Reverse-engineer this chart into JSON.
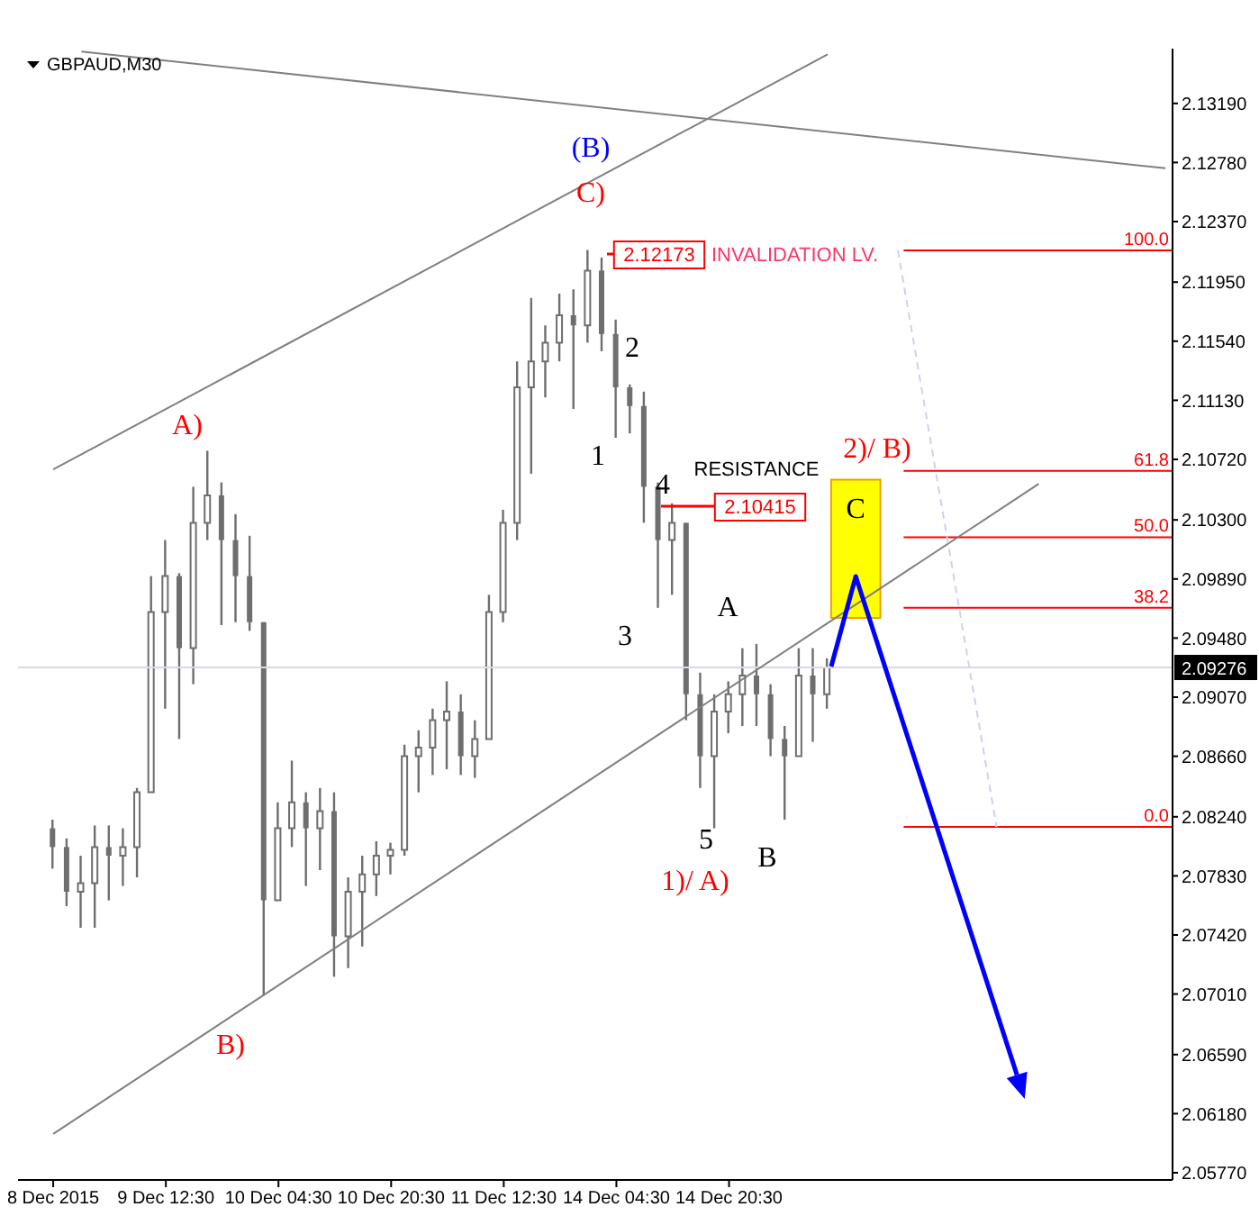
{
  "chart_data": {
    "type": "candlestick",
    "title": "GBPAUD,M30",
    "color": "#6e6e6e",
    "categories": [
      "8 Dec 2015",
      null,
      null,
      null,
      null,
      null,
      null,
      null,
      "9 Dec 12:30",
      null,
      null,
      null,
      null,
      null,
      null,
      null,
      "10 Dec 04:30",
      null,
      null,
      null,
      null,
      null,
      null,
      null,
      "10 Dec 20:30",
      null,
      null,
      null,
      null,
      null,
      null,
      null,
      "11 Dec 12:30",
      null,
      null,
      null,
      null,
      null,
      null,
      null,
      "14 Dec 04:30",
      null,
      null,
      null,
      null,
      null,
      null,
      null,
      "14 Dec 20:30",
      null,
      null,
      null,
      null,
      null,
      null,
      null,
      null,
      null,
      null,
      null,
      null,
      null,
      null,
      null,
      null,
      null,
      null,
      null,
      null,
      null,
      null,
      null,
      null,
      null,
      null,
      null,
      null,
      null,
      null,
      null
    ],
    "ohlc": [
      [
        2.0816,
        2.0822,
        2.0788,
        2.0803
      ],
      [
        2.0803,
        2.0809,
        2.0762,
        2.0772
      ],
      [
        2.0772,
        2.0797,
        2.0747,
        2.0778
      ],
      [
        2.0778,
        2.0818,
        2.0747,
        2.0803
      ],
      [
        2.0803,
        2.0818,
        2.0766,
        2.0797
      ],
      [
        2.0797,
        2.0816,
        2.0776,
        2.0803
      ],
      [
        2.0803,
        2.0844,
        2.0782,
        2.0841
      ],
      [
        2.0841,
        2.0991,
        2.0841,
        2.0966
      ],
      [
        2.0966,
        2.1016,
        2.0899,
        2.0991
      ],
      [
        2.0991,
        2.0993,
        2.0878,
        2.0941
      ],
      [
        2.0941,
        2.1053,
        2.0916,
        2.1028
      ],
      [
        2.1028,
        2.1078,
        2.1016,
        2.1047
      ],
      [
        2.1047,
        2.1056,
        2.0957,
        2.1016
      ],
      [
        2.1016,
        2.1034,
        2.0959,
        2.0991
      ],
      [
        2.0991,
        2.1019,
        2.0953,
        2.0959
      ],
      [
        2.0959,
        2.0959,
        2.07,
        2.0766
      ],
      [
        2.0766,
        2.0834,
        2.0766,
        2.0816
      ],
      [
        2.0816,
        2.0863,
        2.0803,
        2.0834
      ],
      [
        2.0834,
        2.0841,
        2.0776,
        2.0816
      ],
      [
        2.0816,
        2.0844,
        2.0787,
        2.0828
      ],
      [
        2.0828,
        2.0841,
        2.0713,
        2.0741
      ],
      [
        2.0741,
        2.0782,
        2.0719,
        2.0772
      ],
      [
        2.0772,
        2.0797,
        2.0734,
        2.0784
      ],
      [
        2.0784,
        2.0807,
        2.0769,
        2.0797
      ],
      [
        2.0797,
        2.0806,
        2.0784,
        2.0801
      ],
      [
        2.0801,
        2.0874,
        2.0797,
        2.0866
      ],
      [
        2.0866,
        2.0884,
        2.0841,
        2.0872
      ],
      [
        2.0872,
        2.0899,
        2.0853,
        2.0891
      ],
      [
        2.0891,
        2.0918,
        2.0857,
        2.0897
      ],
      [
        2.0897,
        2.0909,
        2.0853,
        2.0866
      ],
      [
        2.0866,
        2.0891,
        2.0851,
        2.0878
      ],
      [
        2.0878,
        2.0978,
        2.0878,
        2.0966
      ],
      [
        2.0966,
        2.1037,
        2.0959,
        2.1028
      ],
      [
        2.1028,
        2.114,
        2.1016,
        2.1122
      ],
      [
        2.1122,
        2.1184,
        2.1062,
        2.114
      ],
      [
        2.114,
        2.1165,
        2.1115,
        2.1153
      ],
      [
        2.1153,
        2.1187,
        2.114,
        2.1172
      ],
      [
        2.1172,
        2.119,
        2.1107,
        2.1165
      ],
      [
        2.1165,
        2.12173,
        2.1153,
        2.1203
      ],
      [
        2.1203,
        2.1212,
        2.1147,
        2.1159
      ],
      [
        2.1159,
        2.1169,
        2.1087,
        2.1122
      ],
      [
        2.1122,
        2.1124,
        2.109,
        2.1109
      ],
      [
        2.1109,
        2.1119,
        2.1028,
        2.1053
      ],
      [
        2.1053,
        2.1056,
        2.0969,
        2.1016
      ],
      [
        2.1016,
        2.10415,
        2.0978,
        2.1028
      ],
      [
        2.1028,
        2.1028,
        2.0891,
        2.0909
      ],
      [
        2.0909,
        2.0924,
        2.0844,
        2.0866
      ],
      [
        2.0866,
        2.0909,
        2.0816,
        2.0897
      ],
      [
        2.0897,
        2.0918,
        2.0882,
        2.0909
      ],
      [
        2.0909,
        2.0941,
        2.0887,
        2.0922
      ],
      [
        2.0922,
        2.0944,
        2.0887,
        2.0909
      ],
      [
        2.0909,
        2.0916,
        2.0866,
        2.0878
      ],
      [
        2.0878,
        2.0887,
        2.0822,
        2.0866
      ],
      [
        2.0866,
        2.0941,
        2.0866,
        2.0922
      ],
      [
        2.0922,
        2.0941,
        2.0876,
        2.0909
      ],
      [
        2.0909,
        2.0934,
        2.0899,
        2.09276
      ],
      null,
      null,
      null,
      null,
      null,
      null,
      null,
      null,
      null,
      null,
      null,
      null,
      null,
      null,
      null,
      null,
      null,
      null,
      null,
      null,
      null,
      null,
      null,
      null
    ],
    "series": [
      {
        "type": "line",
        "color": "#808080",
        "values": [
          2.1065,
          null,
          null,
          null,
          null,
          null,
          null,
          null,
          null,
          null,
          null,
          null,
          null,
          null,
          null,
          null,
          null,
          null,
          null,
          null,
          null,
          null,
          null,
          null,
          null,
          null,
          null,
          null,
          null,
          null,
          null,
          null,
          null,
          null,
          null,
          null,
          null,
          null,
          null,
          null,
          null,
          null,
          null,
          null,
          null,
          null,
          null,
          null,
          null,
          null,
          null,
          null,
          null,
          null,
          null,
          2.1353,
          null,
          null,
          null,
          null,
          null,
          null,
          null,
          null,
          null,
          null,
          null,
          null,
          null,
          null,
          null,
          null,
          null,
          null,
          null,
          null,
          null,
          null,
          null,
          null
        ]
      },
      {
        "type": "line",
        "color": "#808080",
        "values": [
          2.0604,
          null,
          null,
          null,
          null,
          null,
          null,
          null,
          null,
          null,
          null,
          null,
          null,
          null,
          null,
          null,
          null,
          null,
          null,
          null,
          null,
          null,
          null,
          null,
          null,
          null,
          null,
          null,
          null,
          null,
          null,
          null,
          null,
          null,
          null,
          null,
          null,
          null,
          null,
          null,
          null,
          null,
          null,
          null,
          null,
          null,
          null,
          null,
          null,
          null,
          null,
          null,
          null,
          null,
          null,
          null,
          null,
          null,
          null,
          null,
          null,
          null,
          null,
          null,
          null,
          null,
          null,
          null,
          null,
          null,
          2.1055,
          null,
          null,
          null,
          null,
          null,
          null,
          null,
          null,
          null
        ]
      },
      {
        "type": "line",
        "color": "#808080",
        "values": [
          null,
          null,
          2.1355,
          null,
          null,
          null,
          null,
          null,
          null,
          null,
          null,
          null,
          null,
          null,
          null,
          null,
          null,
          null,
          null,
          null,
          null,
          null,
          null,
          null,
          null,
          null,
          null,
          null,
          null,
          null,
          null,
          null,
          null,
          null,
          null,
          null,
          null,
          null,
          null,
          null,
          null,
          null,
          null,
          null,
          null,
          null,
          null,
          null,
          null,
          null,
          null,
          null,
          null,
          null,
          null,
          null,
          null,
          null,
          null,
          null,
          null,
          null,
          null,
          null,
          null,
          null,
          null,
          null,
          null,
          null,
          null,
          null,
          null,
          null,
          null,
          null,
          null,
          null,
          null,
          2.1274
        ]
      },
      {
        "type": "line",
        "color": "#d0d0f0",
        "line_style": "dashed",
        "values": [
          null,
          null,
          null,
          null,
          null,
          null,
          null,
          null,
          null,
          null,
          null,
          null,
          null,
          null,
          null,
          null,
          null,
          null,
          null,
          null,
          null,
          null,
          null,
          null,
          null,
          null,
          null,
          null,
          null,
          null,
          null,
          null,
          null,
          null,
          null,
          null,
          null,
          null,
          null,
          null,
          null,
          null,
          null,
          null,
          null,
          null,
          null,
          null,
          null,
          null,
          null,
          null,
          null,
          null,
          null,
          null,
          null,
          null,
          null,
          null,
          2.1217,
          null,
          null,
          null,
          null,
          null,
          null,
          2.0817,
          null,
          null,
          null,
          null,
          null,
          null,
          null,
          null,
          null,
          null,
          null,
          null
        ]
      }
    ],
    "ylim": [
      2.0572,
      2.1357
    ],
    "yticks": [
      {
        "value": 2.1319,
        "label": "2.13190"
      },
      {
        "value": 2.1278,
        "label": "2.12780"
      },
      {
        "value": 2.1237,
        "label": "2.12370"
      },
      {
        "value": 2.1195,
        "label": "2.11950"
      },
      {
        "value": 2.1154,
        "label": "2.11540"
      },
      {
        "value": 2.1113,
        "label": "2.11130"
      },
      {
        "value": 2.1072,
        "label": "2.10720"
      },
      {
        "value": 2.103,
        "label": "2.10300"
      },
      {
        "value": 2.0989,
        "label": "2.09890"
      },
      {
        "value": 2.0948,
        "label": "2.09480"
      },
      {
        "value": 2.0907,
        "label": "2.09070"
      },
      {
        "value": 2.0866,
        "label": "2.08660"
      },
      {
        "value": 2.0824,
        "label": "2.08240"
      },
      {
        "value": 2.0783,
        "label": "2.07830"
      },
      {
        "value": 2.0742,
        "label": "2.07420"
      },
      {
        "value": 2.0701,
        "label": "2.07010"
      },
      {
        "value": 2.0659,
        "label": "2.06590"
      },
      {
        "value": 2.0618,
        "label": "2.06180"
      },
      {
        "value": 2.0577,
        "label": "2.05770"
      }
    ],
    "ref_lines": [
      {
        "axis": "y",
        "value": 2.1217,
        "color": "#ff0000"
      },
      {
        "axis": "y",
        "value": 2.1064,
        "color": "#ff0000"
      },
      {
        "axis": "y",
        "value": 2.1018,
        "color": "#ff0000"
      },
      {
        "axis": "y",
        "value": 2.0969,
        "color": "#ff0000"
      },
      {
        "axis": "y",
        "value": 2.0817,
        "color": "#ff0000"
      },
      {
        "axis": "y",
        "value": 2.09276,
        "label": "2.09276",
        "color": "#d8d8f4"
      }
    ],
    "bands": [
      {
        "axis": "y",
        "from": 2.0962,
        "to": 2.1058,
        "label": "C",
        "color": "#ffff00"
      }
    ],
    "annotations": [
      "(B)",
      "C)",
      "2.12173",
      "INVALIDATION LV.",
      "A)",
      "B)",
      "2",
      "1",
      "RESISTANCE",
      "4",
      "2.10415",
      "3",
      "A",
      "5",
      "B",
      "1)/ A)",
      "2)/ B)",
      {
        "text": "100.0",
        "y": 2.1217
      },
      {
        "text": "61.8",
        "y": 2.1064
      },
      {
        "text": "50.0",
        "y": 2.1018
      },
      {
        "text": "38.2",
        "y": 2.0969
      },
      {
        "text": "0.0",
        "y": 2.0817
      }
    ]
  }
}
